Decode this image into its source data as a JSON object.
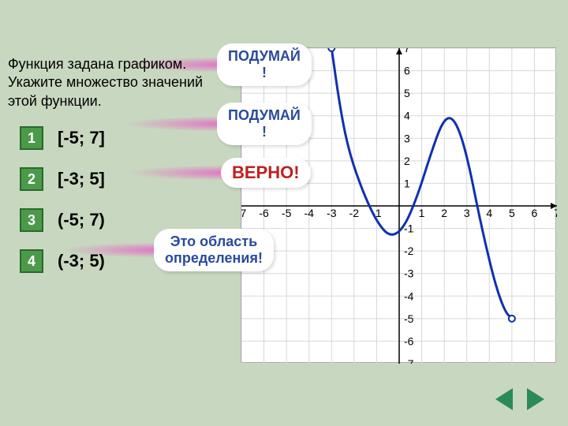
{
  "question_line1": "Функция задана графиком.",
  "question_line2": "Укажите множество значений",
  "question_line3": "этой функции.",
  "options": [
    {
      "num": "1",
      "text": "[-5; 7]"
    },
    {
      "num": "2",
      "text": "[-3; 5]"
    },
    {
      "num": "3",
      "text": "(-5; 7)"
    },
    {
      "num": "4",
      "text": "(-3; 5)"
    }
  ],
  "callouts": {
    "think1": "ПОДУМАЙ\n!",
    "think2": "ПОДУМАЙ\n!",
    "correct": "ВЕРНО!",
    "domain": "Это область\nопределения!"
  },
  "chart": {
    "type": "line",
    "background_color": "#ffffff",
    "grid_color": "#d8d8d8",
    "axis_color": "#000000",
    "curve_color": "#1030b0",
    "curve_width": 3,
    "xlim": [
      -7,
      7
    ],
    "ylim": [
      -7,
      7
    ],
    "xtick_step": 1,
    "ytick_step": 1,
    "tick_fontsize": 14,
    "open_points": [
      {
        "x": -3,
        "y": 7
      },
      {
        "x": 5,
        "y": -5
      }
    ],
    "open_point_radius": 4,
    "open_point_stroke": "#1030b0",
    "open_point_fill": "#ffffff",
    "curve_points": [
      {
        "x": -3.0,
        "y": 7.0
      },
      {
        "x": -2.6,
        "y": 4.2
      },
      {
        "x": -2.2,
        "y": 2.3
      },
      {
        "x": -1.6,
        "y": 0.6
      },
      {
        "x": -1.0,
        "y": -0.7
      },
      {
        "x": -0.4,
        "y": -1.4
      },
      {
        "x": 0.2,
        "y": -1.0
      },
      {
        "x": 0.8,
        "y": 0.4
      },
      {
        "x": 1.4,
        "y": 2.3
      },
      {
        "x": 1.9,
        "y": 3.7
      },
      {
        "x": 2.3,
        "y": 4.0
      },
      {
        "x": 2.7,
        "y": 3.3
      },
      {
        "x": 3.1,
        "y": 1.8
      },
      {
        "x": 3.5,
        "y": -0.2
      },
      {
        "x": 3.9,
        "y": -2.0
      },
      {
        "x": 4.3,
        "y": -3.6
      },
      {
        "x": 4.7,
        "y": -4.7
      },
      {
        "x": 5.0,
        "y": -5.0
      }
    ]
  },
  "colors": {
    "page_bg": "#c8d8c0",
    "option_bg": "#4a9a4a",
    "option_border": "#2a6a2a",
    "arrow": "#2a8a5a",
    "think_text": "#2a4a9a",
    "correct_text": "#c02020"
  }
}
